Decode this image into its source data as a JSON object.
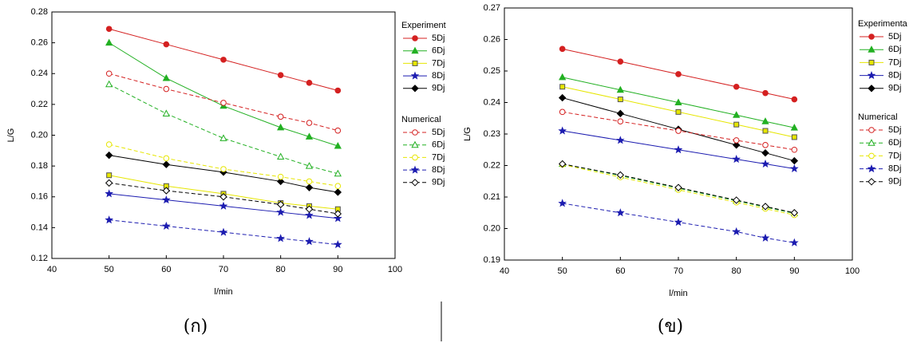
{
  "chart_data": [
    {
      "type": "line",
      "caption": "(ก)",
      "xlabel": "l/min",
      "ylabel": "L/G",
      "x": [
        50,
        60,
        70,
        80,
        85,
        90
      ],
      "xlim": [
        40,
        100
      ],
      "xticks": [
        40,
        50,
        60,
        70,
        80,
        90,
        100
      ],
      "ylim": [
        0.12,
        0.28
      ],
      "yticks": [
        0.12,
        0.14,
        0.16,
        0.18,
        {
          "value": 0.2,
          "label": "0.20"
        },
        0.22,
        0.24,
        0.26,
        0.28
      ],
      "series_groups": [
        {
          "title": "Experiment",
          "dashed": false,
          "filled": true,
          "series": [
            {
              "name": "5Dj",
              "color": "#d42020",
              "marker": "circle",
              "values": [
                0.269,
                0.259,
                0.249,
                0.239,
                0.234,
                0.229
              ]
            },
            {
              "name": "6Dj",
              "color": "#22b022",
              "marker": "triangle",
              "values": [
                0.26,
                0.237,
                0.219,
                0.205,
                0.199,
                0.193
              ]
            },
            {
              "name": "7Dj",
              "color": "#e6e600",
              "marker": "square",
              "values": [
                0.174,
                0.167,
                0.162,
                0.156,
                0.154,
                0.152
              ]
            },
            {
              "name": "8Dj",
              "color": "#1c1cb0",
              "marker": "star",
              "values": [
                0.162,
                0.158,
                0.154,
                0.15,
                0.148,
                0.146
              ]
            },
            {
              "name": "9Dj",
              "color": "#000000",
              "marker": "diamond",
              "values": [
                0.187,
                0.181,
                0.176,
                0.17,
                0.166,
                0.163
              ]
            }
          ]
        },
        {
          "title": "Numerical",
          "dashed": true,
          "filled": false,
          "series": [
            {
              "name": "5Dj",
              "color": "#d42020",
              "marker": "circle",
              "values": [
                0.24,
                0.23,
                0.221,
                0.212,
                0.208,
                0.203
              ]
            },
            {
              "name": "6Dj",
              "color": "#22b022",
              "marker": "triangle",
              "values": [
                0.233,
                0.214,
                0.198,
                0.186,
                0.18,
                0.175
              ]
            },
            {
              "name": "7Dj",
              "color": "#e6e600",
              "marker": "circle",
              "values": [
                0.194,
                0.185,
                0.178,
                0.173,
                0.17,
                0.167
              ]
            },
            {
              "name": "8Dj",
              "color": "#1c1cb0",
              "marker": "star",
              "values": [
                0.145,
                0.141,
                0.137,
                0.133,
                0.131,
                0.129
              ]
            },
            {
              "name": "9Dj",
              "color": "#000000",
              "marker": "diamond",
              "values": [
                0.169,
                0.164,
                0.16,
                0.155,
                0.152,
                0.149
              ]
            }
          ]
        }
      ]
    },
    {
      "type": "line",
      "caption": "(ข)",
      "xlabel": "l/min",
      "ylabel": "L/G",
      "x": [
        50,
        60,
        70,
        80,
        85,
        90
      ],
      "xlim": [
        40,
        100
      ],
      "xticks": [
        40,
        50,
        60,
        70,
        80,
        90,
        100
      ],
      "ylim": [
        0.19,
        0.27
      ],
      "yticks": [
        0.19,
        {
          "value": 0.2,
          "label": "0.20"
        },
        0.21,
        0.22,
        0.23,
        0.24,
        0.25,
        0.26,
        0.27
      ],
      "series_groups": [
        {
          "title": "Experimenta",
          "dashed": false,
          "filled": true,
          "series": [
            {
              "name": "5Dj",
              "color": "#d42020",
              "marker": "circle",
              "values": [
                0.257,
                0.253,
                0.249,
                0.245,
                0.243,
                0.241
              ]
            },
            {
              "name": "6Dj",
              "color": "#22b022",
              "marker": "triangle",
              "values": [
                0.248,
                0.244,
                0.24,
                0.236,
                0.234,
                0.232
              ]
            },
            {
              "name": "7Dj",
              "color": "#e6e600",
              "marker": "square",
              "values": [
                0.245,
                0.241,
                0.237,
                0.233,
                0.231,
                0.229
              ]
            },
            {
              "name": "8Dj",
              "color": "#1c1cb0",
              "marker": "star",
              "values": [
                0.231,
                0.228,
                0.225,
                0.222,
                0.2205,
                0.219
              ]
            },
            {
              "name": "9Dj",
              "color": "#000000",
              "marker": "diamond",
              "values": [
                0.2415,
                0.2365,
                0.2315,
                0.2265,
                0.224,
                0.2215
              ]
            }
          ]
        },
        {
          "title": "Numerical",
          "dashed": true,
          "filled": false,
          "series": [
            {
              "name": "5Dj",
              "color": "#d42020",
              "marker": "circle",
              "values": [
                0.237,
                0.234,
                0.231,
                0.228,
                0.2265,
                0.225
              ]
            },
            {
              "name": "6Dj",
              "color": "#22b022",
              "marker": "triangle",
              "values": [
                0.2205,
                0.2168,
                0.2128,
                0.2088,
                0.2068,
                0.2048
              ]
            },
            {
              "name": "7Dj",
              "color": "#e6e600",
              "marker": "circle",
              "values": [
                0.2203,
                0.2163,
                0.2123,
                0.2083,
                0.2063,
                0.2043
              ]
            },
            {
              "name": "8Dj",
              "color": "#1c1cb0",
              "marker": "star",
              "values": [
                0.208,
                0.205,
                0.202,
                0.199,
                0.197,
                0.1955
              ]
            },
            {
              "name": "9Dj",
              "color": "#000000",
              "marker": "diamond",
              "values": [
                0.2205,
                0.217,
                0.213,
                0.209,
                0.207,
                0.205
              ]
            }
          ]
        }
      ]
    }
  ]
}
